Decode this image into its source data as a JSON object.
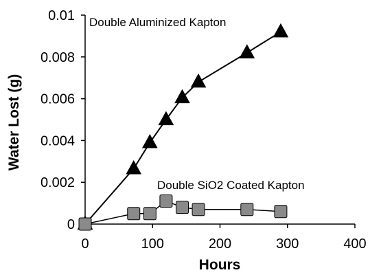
{
  "chart_data": {
    "type": "line",
    "title": "",
    "xlabel": "Hours",
    "ylabel": "Water Lost (g)",
    "xlim": [
      0,
      400
    ],
    "ylim": [
      0,
      0.01
    ],
    "xticks": [
      0,
      100,
      200,
      300,
      400
    ],
    "yticks": [
      0,
      0.002,
      0.004,
      0.006,
      0.008,
      0.01
    ],
    "xtick_labels": [
      "0",
      "100",
      "200",
      "300",
      "400"
    ],
    "ytick_labels": [
      "0",
      "0.002",
      "0.004",
      "0.006",
      "0.008",
      "0.01"
    ],
    "grid": false,
    "legend": "none",
    "series": [
      {
        "name": "Double Aluminized Kapton",
        "marker": "triangle",
        "marker_color": "#000000",
        "x": [
          0,
          72,
          96,
          120,
          144,
          168,
          240,
          290
        ],
        "y": [
          0,
          0.00265,
          0.0039,
          0.005,
          0.00605,
          0.0068,
          0.0082,
          0.0092
        ]
      },
      {
        "name": "Double SiO2 Coated Kapton",
        "marker": "square",
        "marker_color": "#8a8a8a",
        "x": [
          0,
          72,
          96,
          120,
          144,
          168,
          240,
          290
        ],
        "y": [
          0,
          0.0005,
          0.0005,
          0.0011,
          0.0008,
          0.0007,
          0.0007,
          0.0006
        ]
      }
    ]
  }
}
